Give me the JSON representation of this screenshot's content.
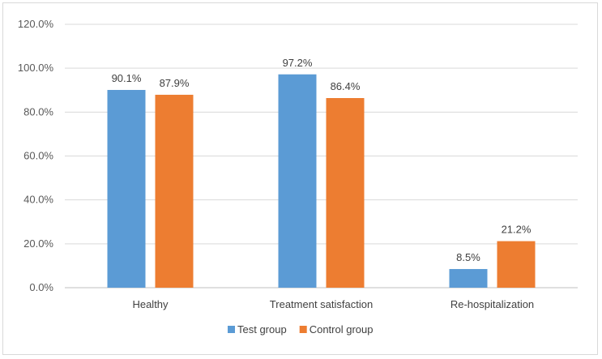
{
  "chart_data": {
    "type": "bar",
    "categories": [
      "Healthy",
      "Treatment satisfaction",
      "Re-hospitalization"
    ],
    "series": [
      {
        "name": "Test group",
        "values": [
          90.1,
          97.2,
          8.5
        ],
        "color": "#5B9BD5"
      },
      {
        "name": "Control group",
        "values": [
          87.9,
          86.4,
          21.2
        ],
        "color": "#ED7D31"
      }
    ],
    "data_labels": [
      [
        "90.1%",
        "97.2%",
        "8.5%"
      ],
      [
        "87.9%",
        "86.4%",
        "21.2%"
      ]
    ],
    "yticks": [
      "0.0%",
      "20.0%",
      "40.0%",
      "60.0%",
      "80.0%",
      "100.0%",
      "120.0%"
    ],
    "ylim": [
      0,
      120
    ],
    "grid": true,
    "legend_position": "bottom",
    "title": "",
    "xlabel": "",
    "ylabel": ""
  }
}
